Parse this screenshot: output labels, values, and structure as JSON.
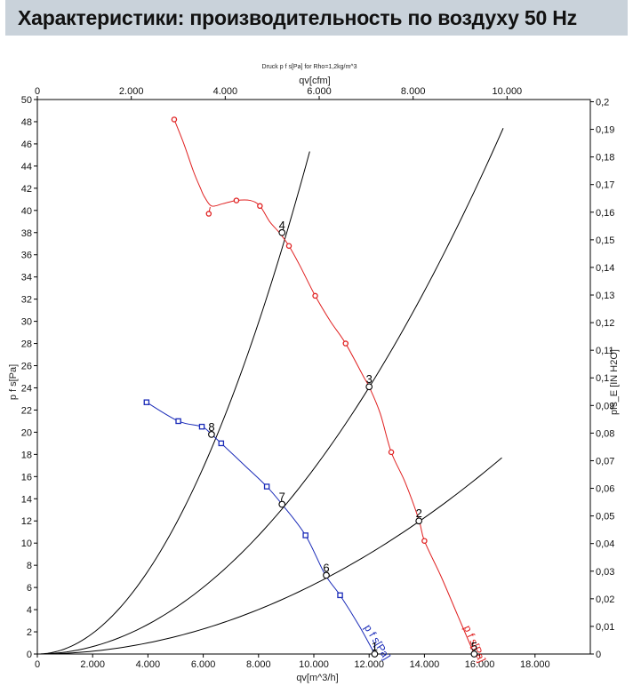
{
  "header": {
    "title": "Характеристики: производительность по воздуху 50 Hz"
  },
  "chart_data": {
    "type": "line",
    "title": "Druck p f s[Pa] for Rho=1,2kg/m^3",
    "xlabel": "qv[m^3/h]",
    "x2label": "qv[cfm]",
    "ylabel": "p f s[Pa]",
    "y2label": "pfs_E [IN H2O]",
    "xlim": [
      0,
      20000
    ],
    "ylim": [
      0,
      50
    ],
    "x2lim": [
      0,
      11772
    ],
    "y2lim": [
      0,
      0.2008
    ],
    "grid": false,
    "x_ticks": [
      {
        "v": 0,
        "label": "0"
      },
      {
        "v": 2000,
        "label": "2.000"
      },
      {
        "v": 4000,
        "label": "4.000"
      },
      {
        "v": 6000,
        "label": "6.000"
      },
      {
        "v": 8000,
        "label": "8.000"
      },
      {
        "v": 10000,
        "label": "10.000"
      },
      {
        "v": 12000,
        "label": "12.000"
      },
      {
        "v": 14000,
        "label": "14.000"
      },
      {
        "v": 16000,
        "label": "16.000"
      },
      {
        "v": 18000,
        "label": "18.000"
      }
    ],
    "x2_ticks": [
      {
        "v": 0,
        "label": "0"
      },
      {
        "v": 2000,
        "label": "2.000"
      },
      {
        "v": 4000,
        "label": "4.000"
      },
      {
        "v": 6000,
        "label": "6.000"
      },
      {
        "v": 8000,
        "label": "8.000"
      },
      {
        "v": 10000,
        "label": "10.000"
      }
    ],
    "y_ticks": [
      {
        "v": 0,
        "label": "0"
      },
      {
        "v": 2,
        "label": "2"
      },
      {
        "v": 4,
        "label": "4"
      },
      {
        "v": 6,
        "label": "6"
      },
      {
        "v": 8,
        "label": "8"
      },
      {
        "v": 10,
        "label": "10"
      },
      {
        "v": 12,
        "label": "12"
      },
      {
        "v": 14,
        "label": "14"
      },
      {
        "v": 16,
        "label": "16"
      },
      {
        "v": 18,
        "label": "18"
      },
      {
        "v": 20,
        "label": "20"
      },
      {
        "v": 22,
        "label": "22"
      },
      {
        "v": 24,
        "label": "24"
      },
      {
        "v": 26,
        "label": "26"
      },
      {
        "v": 28,
        "label": "28"
      },
      {
        "v": 30,
        "label": "30"
      },
      {
        "v": 32,
        "label": "32"
      },
      {
        "v": 34,
        "label": "34"
      },
      {
        "v": 36,
        "label": "36"
      },
      {
        "v": 38,
        "label": "38"
      },
      {
        "v": 40,
        "label": "40"
      },
      {
        "v": 42,
        "label": "42"
      },
      {
        "v": 44,
        "label": "44"
      },
      {
        "v": 46,
        "label": "46"
      },
      {
        "v": 48,
        "label": "48"
      },
      {
        "v": 50,
        "label": "50"
      }
    ],
    "y2_ticks": [
      {
        "v": 0,
        "label": "0"
      },
      {
        "v": 0.01,
        "label": "0,01"
      },
      {
        "v": 0.02,
        "label": "0,02"
      },
      {
        "v": 0.03,
        "label": "0,03"
      },
      {
        "v": 0.04,
        "label": "0,04"
      },
      {
        "v": 0.05,
        "label": "0,05"
      },
      {
        "v": 0.06,
        "label": "0,06"
      },
      {
        "v": 0.07,
        "label": "0,07"
      },
      {
        "v": 0.08,
        "label": "0,08"
      },
      {
        "v": 0.09,
        "label": "0,09"
      },
      {
        "v": 0.1,
        "label": "0,1"
      },
      {
        "v": 0.11,
        "label": "0,11"
      },
      {
        "v": 0.12,
        "label": "0,12"
      },
      {
        "v": 0.13,
        "label": "0,13"
      },
      {
        "v": 0.14,
        "label": "0,14"
      },
      {
        "v": 0.15,
        "label": "0,15"
      },
      {
        "v": 0.16,
        "label": "0,16"
      },
      {
        "v": 0.17,
        "label": "0,17"
      },
      {
        "v": 0.18,
        "label": "0,18"
      },
      {
        "v": 0.19,
        "label": "0,19"
      },
      {
        "v": 0.2,
        "label": "0,2"
      }
    ],
    "series": [
      {
        "name": "p f s[Pa]",
        "color": "#e02020",
        "marker": "circle",
        "curve": [
          [
            4950,
            48.2
          ],
          [
            5300,
            46.0
          ],
          [
            5650,
            43.5
          ],
          [
            5900,
            42.0
          ],
          [
            6050,
            41.2
          ],
          [
            6300,
            40.4
          ],
          [
            6700,
            40.6
          ],
          [
            7200,
            40.9
          ],
          [
            7700,
            40.9
          ],
          [
            8050,
            40.4
          ],
          [
            8400,
            39.0
          ],
          [
            8750,
            38.0
          ],
          [
            9100,
            36.8
          ],
          [
            9500,
            35.0
          ],
          [
            10050,
            32.3
          ],
          [
            10600,
            30.0
          ],
          [
            11150,
            28.0
          ],
          [
            11800,
            25.0
          ],
          [
            12000,
            24.1
          ],
          [
            12400,
            21.7
          ],
          [
            12800,
            18.2
          ],
          [
            13300,
            15.5
          ],
          [
            13800,
            12.1
          ],
          [
            14000,
            10.2
          ],
          [
            14600,
            7.0
          ],
          [
            15200,
            3.5
          ],
          [
            15800,
            0.0
          ]
        ],
        "head": [
          [
            6200,
            39.7
          ],
          [
            6250,
            40.3
          ]
        ],
        "points": [
          [
            4950,
            48.2
          ],
          [
            6200,
            39.7
          ],
          [
            7200,
            40.9
          ],
          [
            8050,
            40.4
          ],
          [
            9100,
            36.8
          ],
          [
            10050,
            32.3
          ],
          [
            11150,
            28.0
          ],
          [
            12800,
            18.2
          ],
          [
            14000,
            10.2
          ]
        ],
        "label": "p f s[Pa]"
      },
      {
        "name": "p f s[Pa]",
        "color": "#1a2bb8",
        "marker": "square",
        "curve": [
          [
            3950,
            22.7
          ],
          [
            5100,
            21.0
          ],
          [
            5950,
            20.5
          ],
          [
            6300,
            19.8
          ],
          [
            6650,
            19.0
          ],
          [
            7500,
            17.0
          ],
          [
            8300,
            15.1
          ],
          [
            8850,
            13.5
          ],
          [
            9700,
            10.7
          ],
          [
            10400,
            7.2
          ],
          [
            10950,
            5.3
          ],
          [
            11650,
            2.5
          ],
          [
            12200,
            0.0
          ]
        ],
        "points": [
          [
            3950,
            22.7
          ],
          [
            5100,
            21.0
          ],
          [
            5950,
            20.5
          ],
          [
            6650,
            19.0
          ],
          [
            8300,
            15.1
          ],
          [
            9700,
            10.7
          ],
          [
            10950,
            5.3
          ]
        ],
        "label": "p f s[Pa]"
      }
    ],
    "system_curves": [
      {
        "k": 4.67e-07,
        "x_end": 9850
      },
      {
        "k": 1.67e-07,
        "x_end": 16850
      },
      {
        "k": 6.27e-08,
        "x_end": 16800
      }
    ],
    "operating_points": [
      {
        "label": "1",
        "x": 12200,
        "y": 0.0
      },
      {
        "label": "2",
        "x": 13800,
        "y": 12.0
      },
      {
        "label": "3",
        "x": 12000,
        "y": 24.1
      },
      {
        "label": "4",
        "x": 8850,
        "y": 38.0
      },
      {
        "label": "5",
        "x": 15800,
        "y": 0.0
      },
      {
        "label": "6",
        "x": 10450,
        "y": 7.1
      },
      {
        "label": "7",
        "x": 8850,
        "y": 13.5
      },
      {
        "label": "8",
        "x": 6300,
        "y": 19.8
      }
    ]
  }
}
